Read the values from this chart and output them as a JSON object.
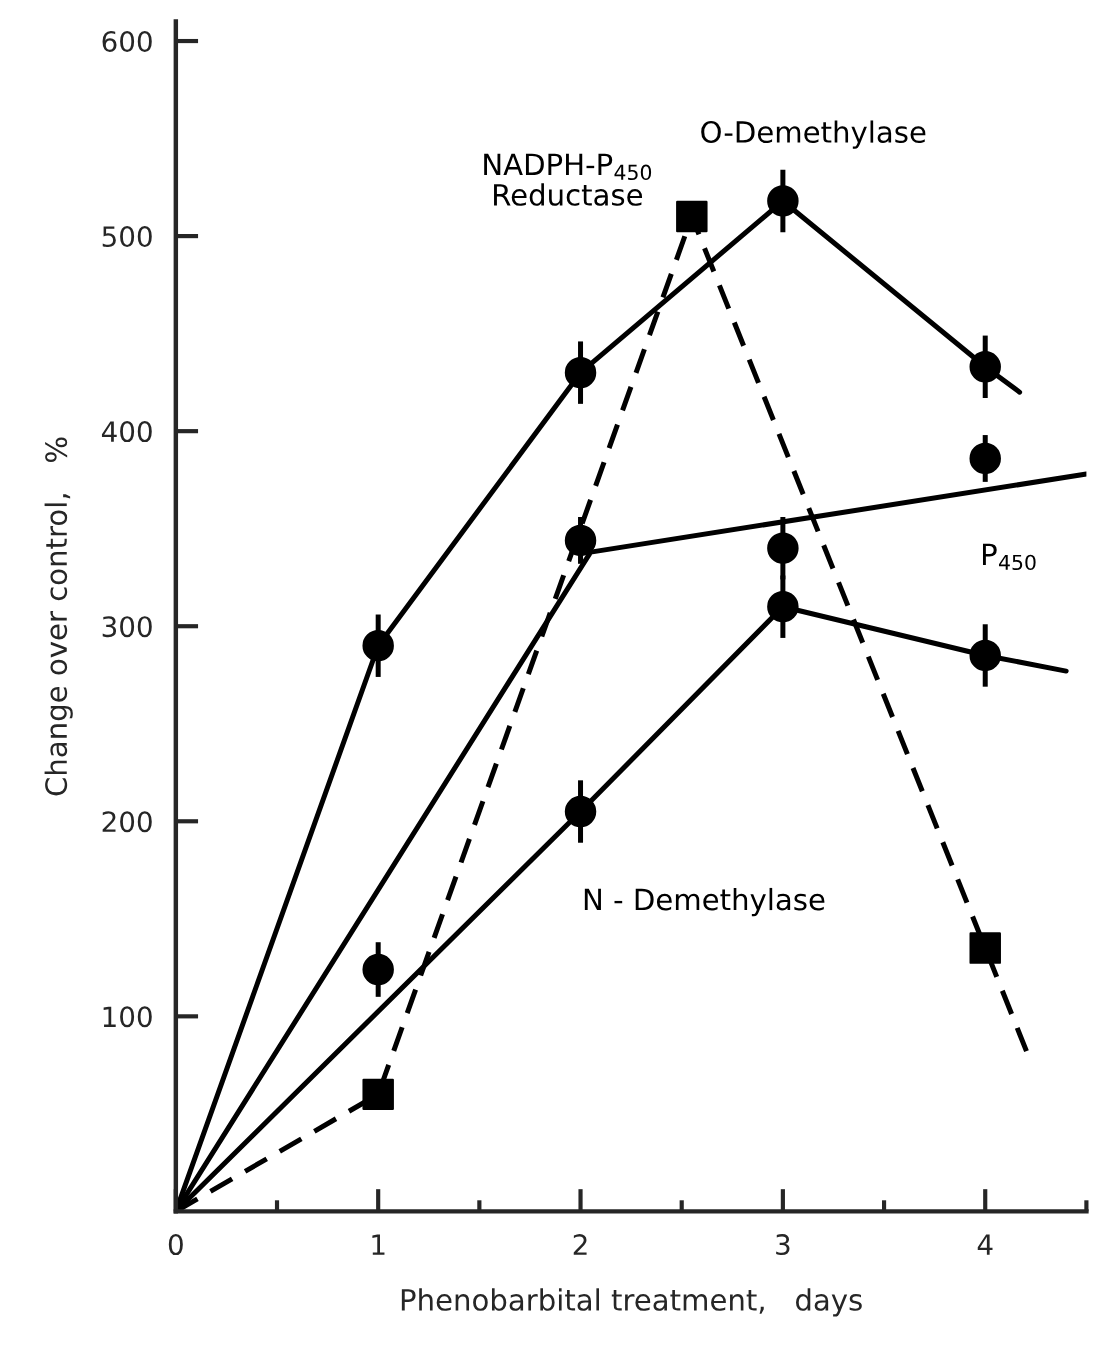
{
  "chart_data": {
    "type": "line",
    "xlabel": "Phenobarbital treatment,   days",
    "ylabel": "Change over control,   %",
    "xlim": [
      0,
      4.5
    ],
    "ylim": [
      0,
      610
    ],
    "xticks": [
      0,
      {
        "value": 0.5,
        "label": null
      },
      1,
      {
        "value": 1.5,
        "label": null
      },
      2,
      {
        "value": 2.5,
        "label": null
      },
      3,
      {
        "value": 3.5,
        "label": null
      },
      4,
      {
        "value": 4.5,
        "label": null
      }
    ],
    "yticks": [
      {
        "value": 100,
        "label": "100"
      },
      {
        "value": 200,
        "label": "200"
      },
      {
        "value": 300,
        "label": "300"
      },
      {
        "value": 400,
        "label": "400"
      },
      {
        "value": 500,
        "label": "500"
      },
      {
        "value": 600,
        "label": "600"
      }
    ],
    "grid": false,
    "legend": false,
    "series": [
      {
        "name": "O-Demethylase",
        "color": "#000000",
        "line_style": "solid",
        "marker": "none",
        "x": [
          0,
          1,
          2,
          3,
          4,
          4.17
        ],
        "values": [
          0,
          290,
          430,
          518,
          433,
          420
        ]
      },
      {
        "type": "scatter",
        "color": "#000000",
        "marker": "circle",
        "x": [
          1,
          2,
          3,
          4
        ],
        "values": [
          290,
          430,
          518,
          433
        ],
        "errors": [
          16,
          16,
          16,
          16
        ]
      },
      {
        "name": "P$_{450}$",
        "color": "#000000",
        "line_style": "solid",
        "marker": "none",
        "x": [
          0,
          2.05,
          4.5
        ],
        "values": [
          0,
          338,
          378
        ]
      },
      {
        "type": "scatter",
        "color": "#000000",
        "marker": "circle",
        "x": [
          1,
          2,
          3,
          4
        ],
        "values": [
          124,
          344,
          340,
          386
        ],
        "errors": [
          14,
          12,
          16,
          12
        ]
      },
      {
        "name": "N - Demethylase",
        "color": "#000000",
        "line_style": "solid",
        "marker": "none",
        "x": [
          0,
          2,
          3,
          4,
          4.4
        ],
        "values": [
          0,
          205,
          310,
          285,
          277
        ]
      },
      {
        "type": "scatter",
        "color": "#000000",
        "marker": "circle",
        "x": [
          2,
          3,
          4
        ],
        "values": [
          205,
          310,
          285
        ],
        "errors": [
          16,
          16,
          16
        ]
      },
      {
        "name": "NADPH-P$_{450}$\nReductase",
        "color": "#000000",
        "line_style": "dashed",
        "marker": "none",
        "x": [
          0,
          1,
          2.55,
          4,
          4.22
        ],
        "values": [
          0,
          60,
          510,
          135,
          78
        ]
      },
      {
        "type": "scatter",
        "color": "#000000",
        "marker": "square",
        "x": [
          1,
          2.55,
          4
        ],
        "values": [
          60,
          510,
          135
        ]
      }
    ]
  }
}
